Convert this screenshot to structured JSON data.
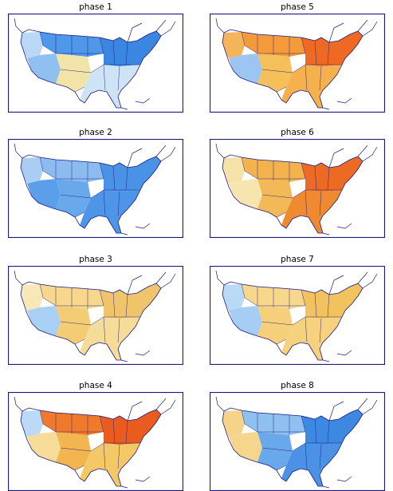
{
  "panels": [
    {
      "id": "p1",
      "title": "phase 1",
      "palette": {
        "west": "#8fc0ef",
        "north": "#4f97e8",
        "east": "#3a86e0",
        "south": "#f2e3a6",
        "southeast": "#cfe3f7",
        "pnw": "#b9d8f5"
      }
    },
    {
      "id": "p2",
      "title": "phase 2",
      "palette": {
        "west": "#5b9fea",
        "north": "#8cbcef",
        "east": "#4a92e6",
        "south": "#6aa8ec",
        "southeast": "#4f95e7",
        "pnw": "#a9cdf3"
      }
    },
    {
      "id": "p3",
      "title": "phase 3",
      "palette": {
        "west": "#a8cff4",
        "north": "#f6d78c",
        "east": "#f0c46a",
        "south": "#f4cc74",
        "southeast": "#f6dc99",
        "pnw": "#f8e8b8"
      }
    },
    {
      "id": "p4",
      "title": "phase 4",
      "palette": {
        "west": "#f6dc98",
        "north": "#f07a2c",
        "east": "#ea5b1f",
        "south": "#f3b54f",
        "southeast": "#f5c866",
        "pnw": "#bcdaf6"
      }
    },
    {
      "id": "p5",
      "title": "phase 5",
      "palette": {
        "west": "#9cc6f1",
        "north": "#f39a3a",
        "east": "#ee6a22",
        "south": "#f5c05a",
        "southeast": "#f4b14d",
        "pnw": "#f4b45a"
      }
    },
    {
      "id": "p6",
      "title": "phase 6",
      "palette": {
        "west": "#f7e5b0",
        "north": "#f4b24c",
        "east": "#ec6a23",
        "south": "#f4b957",
        "southeast": "#f08a30",
        "pnw": "#f6e2a8"
      }
    },
    {
      "id": "p7",
      "title": "phase 7",
      "palette": {
        "west": "#a6cdf3",
        "north": "#f6d78b",
        "east": "#f2c25e",
        "south": "#f5cf7a",
        "southeast": "#f6d27f",
        "pnw": "#bad9f5"
      }
    },
    {
      "id": "p8",
      "title": "phase 8",
      "palette": {
        "west": "#f6d68c",
        "north": "#8fc0ef",
        "east": "#3d88e1",
        "south": "#6aa8ec",
        "southeast": "#4b92e6",
        "pnw": "#f5d48a"
      }
    }
  ],
  "frame_color": "#1a1a80",
  "ocean_color": "#ffffff"
}
